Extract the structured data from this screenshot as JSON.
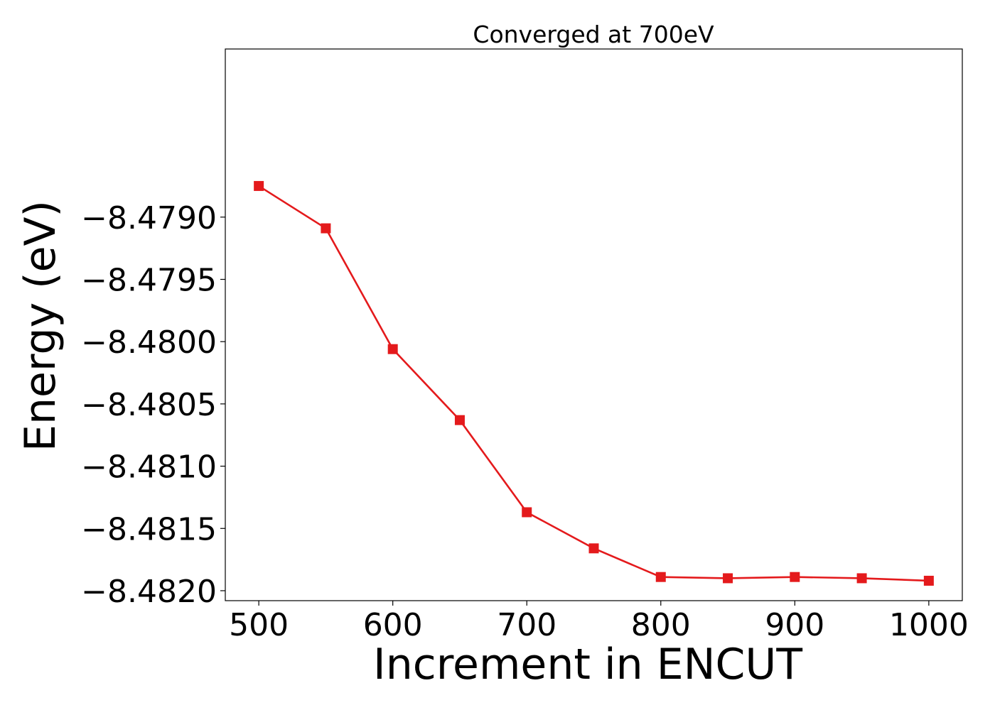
{
  "chart_data": {
    "type": "line",
    "title": "Converged at 700eV",
    "xlabel": "Increment in ENCUT",
    "ylabel": "Energy (eV)",
    "xlim": [
      475,
      1025
    ],
    "ylim": [
      -8.48208,
      -8.47765
    ],
    "xticks": [
      500,
      600,
      700,
      800,
      900,
      1000
    ],
    "yticks": [
      -8.479,
      -8.4795,
      -8.48,
      -8.4805,
      -8.481,
      -8.4815,
      -8.482
    ],
    "yticks_labels": [
      "−8.4790",
      "−8.4795",
      "−8.4800",
      "−8.4805",
      "−8.4810",
      "−8.4815",
      "−8.4820"
    ],
    "grid": false,
    "series": [
      {
        "color": "#e41a1c",
        "marker": "square",
        "x": [
          500,
          550,
          600,
          650,
          700,
          750,
          800,
          850,
          900,
          950,
          1000
        ],
        "y": [
          -8.47875,
          -8.47909,
          -8.48006,
          -8.48063,
          -8.48137,
          -8.48166,
          -8.48189,
          -8.4819,
          -8.48189,
          -8.4819,
          -8.48192
        ]
      }
    ]
  }
}
